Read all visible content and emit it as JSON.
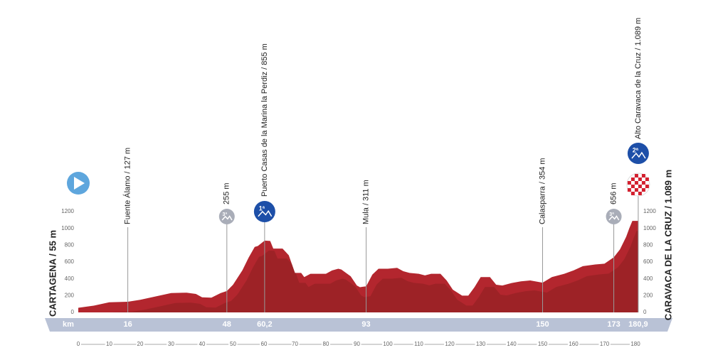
{
  "chart_data": {
    "type": "area",
    "color": "#b3262e",
    "x": [
      0,
      5,
      10,
      16,
      20,
      25,
      30,
      35,
      38,
      40,
      43,
      46,
      48,
      50,
      53,
      55,
      57,
      58,
      60.2,
      62,
      63,
      66,
      68,
      70,
      72,
      73,
      75,
      80,
      82,
      84,
      85,
      88,
      90,
      91,
      93,
      95,
      97,
      100,
      103,
      105,
      107,
      110,
      112,
      114,
      117,
      119,
      121,
      124,
      126,
      128,
      130,
      133,
      135,
      137,
      140,
      143,
      146,
      150,
      153,
      157,
      160,
      163,
      167,
      170,
      173,
      175,
      177,
      178,
      179,
      180.9
    ],
    "values": [
      55,
      80,
      120,
      127,
      150,
      190,
      230,
      235,
      220,
      180,
      175,
      230,
      255,
      330,
      500,
      650,
      780,
      790,
      855,
      850,
      760,
      760,
      680,
      470,
      470,
      420,
      460,
      460,
      500,
      520,
      510,
      430,
      320,
      300,
      311,
      450,
      520,
      520,
      530,
      490,
      470,
      460,
      440,
      460,
      460,
      380,
      270,
      200,
      200,
      300,
      420,
      420,
      330,
      320,
      350,
      370,
      380,
      354,
      420,
      460,
      500,
      550,
      570,
      580,
      656,
      750,
      900,
      1000,
      1089,
      1089
    ],
    "xlim": [
      0,
      180.9
    ],
    "xticks": [
      0,
      10,
      20,
      30,
      40,
      50,
      60,
      70,
      80,
      90,
      100,
      110,
      120,
      130,
      140,
      150,
      160,
      170,
      180
    ],
    "ylim": [
      0,
      1200
    ],
    "yticks": [
      0,
      200,
      400,
      600,
      800,
      1000,
      1200
    ],
    "start_label": "CARTAGENA / 55 m",
    "finish_label": "CARAVACA DE LA CRUZ / 1.089 m",
    "km_label": "km",
    "km_markers": [
      16,
      48,
      {
        "value": 60.2,
        "label": "60,2"
      },
      93,
      150,
      173,
      {
        "value": 180.9,
        "label": "180,9"
      }
    ],
    "annotations": [
      {
        "km": 16,
        "text": "Fuente Álamo / 127 m"
      },
      {
        "km": 48,
        "text": "255 m",
        "category": "3ª"
      },
      {
        "km": 60.2,
        "text": "Puerto Casas de la Marina la Perdiz / 855 m",
        "category": "1ª"
      },
      {
        "km": 93,
        "text": "Mula / 311 m"
      },
      {
        "km": 150,
        "text": "Calasparra / 354 m"
      },
      {
        "km": 173,
        "text": "656 m",
        "category": "3ª"
      },
      {
        "km": 180.9,
        "text": "Alto Caravaca de la Cruz / 1.089 m",
        "category": "2ª"
      }
    ]
  }
}
